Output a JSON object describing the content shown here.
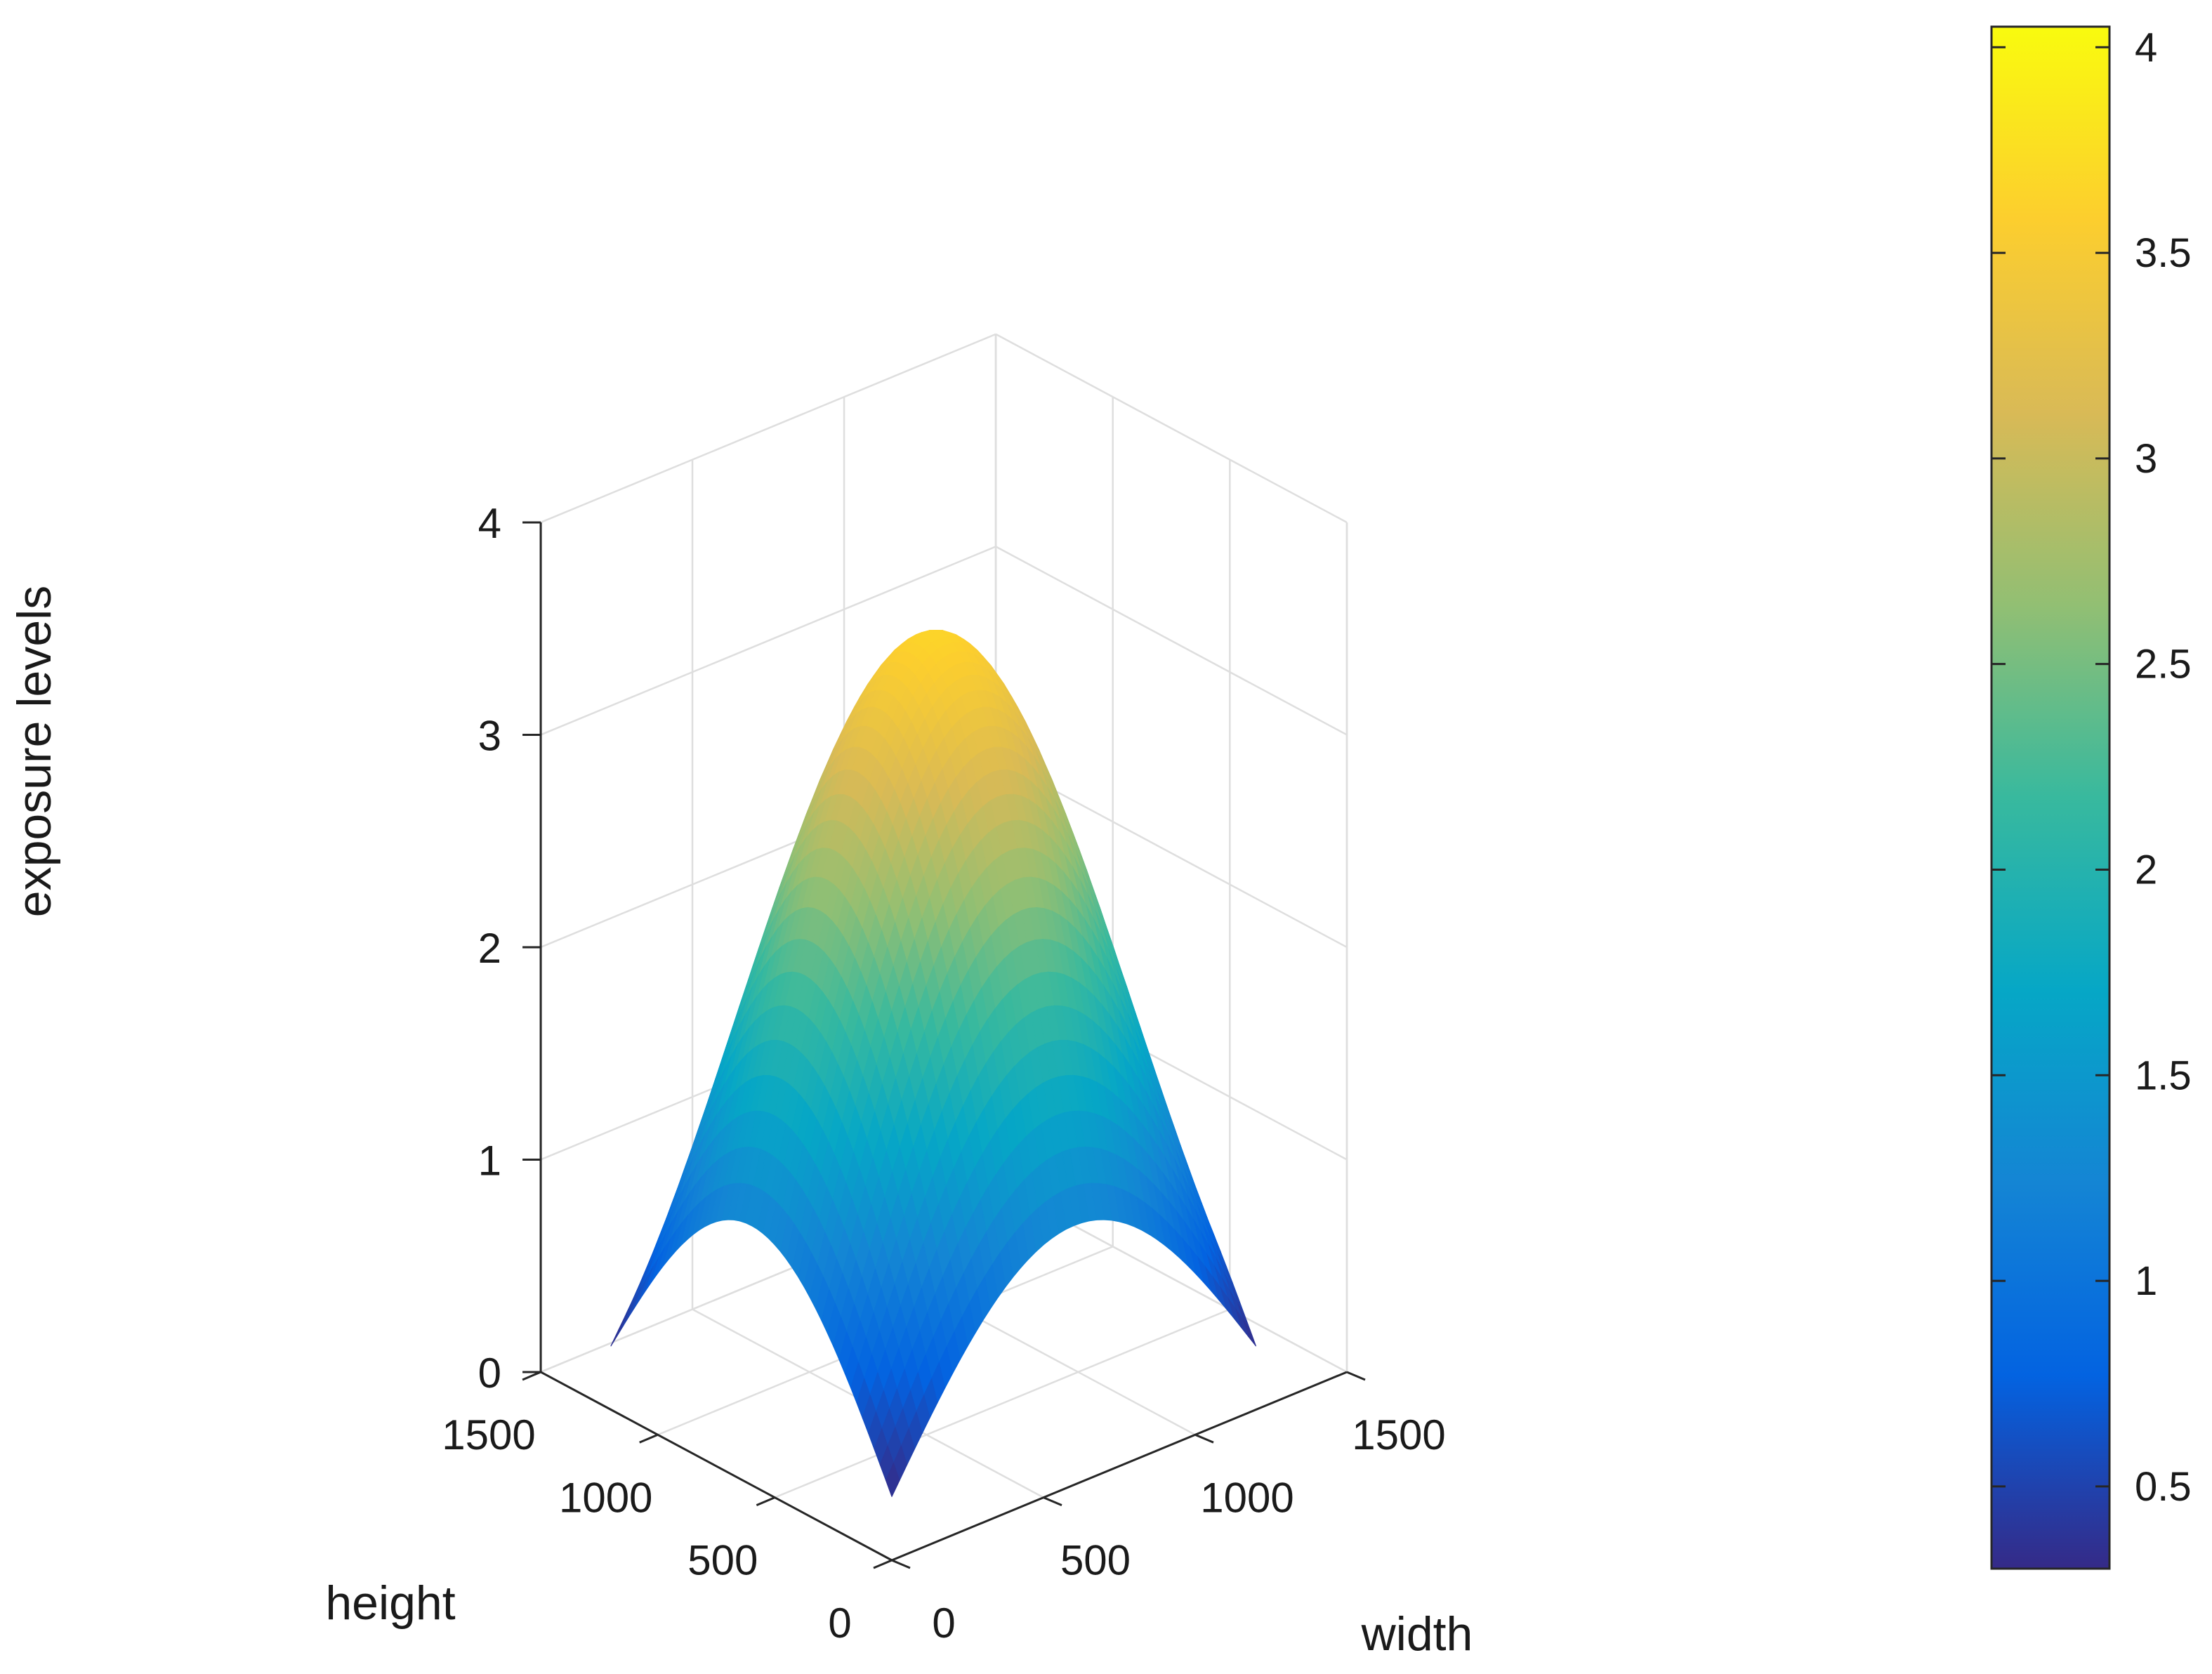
{
  "chart_data": {
    "type": "surface",
    "x_axis": {
      "label": "width",
      "ticks": [
        "0",
        "500",
        "1000",
        "1500"
      ],
      "tick_values": [
        0,
        500,
        1000,
        1500
      ],
      "range": [
        0,
        1500
      ]
    },
    "y_axis": {
      "label": "height",
      "ticks": [
        "0",
        "500",
        "1000",
        "1500"
      ],
      "tick_values": [
        0,
        500,
        1000,
        1500
      ],
      "range": [
        0,
        1500
      ]
    },
    "z_axis": {
      "label": "exposure levels",
      "ticks": [
        "0",
        "1",
        "2",
        "3",
        "4"
      ],
      "tick_values": [
        0,
        1,
        2,
        3,
        4
      ],
      "range": [
        0,
        4
      ]
    },
    "colorbar": {
      "ticks": [
        "0.5",
        "1",
        "1.5",
        "2",
        "2.5",
        "3",
        "3.5",
        "4"
      ],
      "tick_values": [
        0.5,
        1,
        1.5,
        2,
        2.5,
        3,
        3.5,
        4
      ],
      "range": [
        0.3,
        4.05
      ]
    },
    "colormap": "parula",
    "colormap_stops": [
      "#352a87",
      "#0363e1",
      "#1485d4",
      "#06a7c6",
      "#38b99e",
      "#92bf73",
      "#d9ba56",
      "#fcce2e",
      "#f9fb0e"
    ],
    "surface": {
      "x_range": [
        0,
        1200
      ],
      "y_range": [
        0,
        1200
      ],
      "peak": {
        "x": 600,
        "y": 600,
        "z": 3.65
      },
      "corner_min_z": 0.3,
      "edge_mid_z": 1.6
    },
    "grid": true,
    "grid_color": "#dedede",
    "axis_color": "#262626"
  }
}
